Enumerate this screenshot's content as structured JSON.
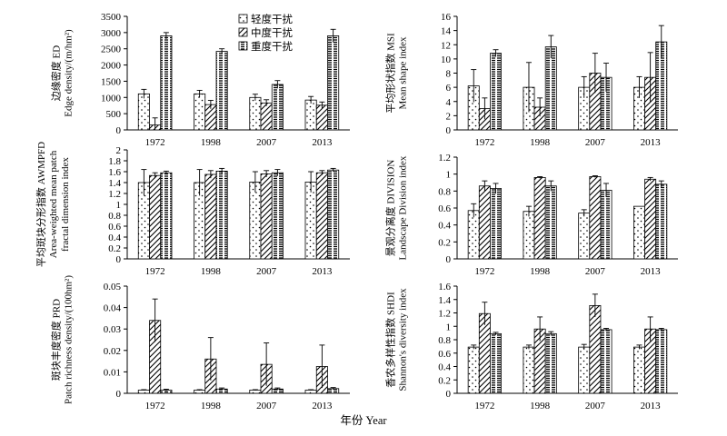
{
  "figure": {
    "x_title": "年份 Year"
  },
  "legend": [
    {
      "label": "轻度干扰",
      "pattern": "dots"
    },
    {
      "label": "中度干扰",
      "pattern": "hatch"
    },
    {
      "label": "重度干扰",
      "pattern": "dashes"
    }
  ],
  "chart_data": [
    {
      "type": "bar",
      "ylabel_lines": [
        "边缘密度 ED",
        "Edge density/(m/hm²)"
      ],
      "categories": [
        "1972",
        "1998",
        "2007",
        "2013"
      ],
      "ylim": [
        0,
        3500
      ],
      "yticks": [
        0,
        500,
        1000,
        1500,
        2000,
        2500,
        3000,
        3500
      ],
      "series": [
        {
          "name": "轻度干扰",
          "values": [
            1110,
            1110,
            1000,
            920
          ],
          "errors": [
            140,
            110,
            100,
            110
          ]
        },
        {
          "name": "中度干扰",
          "values": [
            150,
            780,
            830,
            760
          ],
          "errors": [
            220,
            130,
            100,
            100
          ]
        },
        {
          "name": "重度干扰",
          "values": [
            2900,
            2420,
            1400,
            2900
          ],
          "errors": [
            100,
            80,
            120,
            200
          ]
        }
      ]
    },
    {
      "type": "bar",
      "ylabel_lines": [
        "平均形状指数 MSI",
        "Mean shape index"
      ],
      "categories": [
        "1972",
        "1998",
        "2007",
        "2013"
      ],
      "ylim": [
        0,
        16
      ],
      "yticks": [
        0,
        2,
        4,
        6,
        8,
        10,
        12,
        14,
        16
      ],
      "series": [
        {
          "name": "轻度干扰",
          "values": [
            6.2,
            6.0,
            6.0,
            6.0
          ],
          "errors": [
            2.3,
            3.5,
            1.5,
            1.5
          ]
        },
        {
          "name": "中度干扰",
          "values": [
            3.0,
            3.2,
            8.0,
            7.4
          ],
          "errors": [
            1.5,
            1.3,
            2.8,
            3.5
          ]
        },
        {
          "name": "重度干扰",
          "values": [
            10.8,
            11.7,
            7.4,
            12.4
          ],
          "errors": [
            0.5,
            1.6,
            2.0,
            2.3
          ]
        }
      ]
    },
    {
      "type": "bar",
      "ylabel_lines": [
        "平均斑块分形指数 AWMPFD",
        "Area-weighted mean patch",
        "fractal dimension index"
      ],
      "categories": [
        "1972",
        "1998",
        "2007",
        "2013"
      ],
      "ylim": [
        0,
        2.0
      ],
      "yticks": [
        0,
        0.2,
        0.4,
        0.6,
        0.8,
        1.0,
        1.2,
        1.4,
        1.6,
        1.8,
        2.0
      ],
      "series": [
        {
          "name": "轻度干扰",
          "values": [
            1.4,
            1.4,
            1.41,
            1.41
          ],
          "errors": [
            0.24,
            0.24,
            0.19,
            0.19
          ]
        },
        {
          "name": "中度干扰",
          "values": [
            1.53,
            1.55,
            1.56,
            1.58
          ],
          "errors": [
            0.05,
            0.07,
            0.06,
            0.04
          ]
        },
        {
          "name": "重度干扰",
          "values": [
            1.58,
            1.61,
            1.58,
            1.63
          ],
          "errors": [
            0.03,
            0.05,
            0.06,
            0.03
          ]
        }
      ]
    },
    {
      "type": "bar",
      "ylabel_lines": [
        "景观分离度 DIVISION",
        "Landscape Division index"
      ],
      "categories": [
        "1972",
        "1998",
        "2007",
        "2013"
      ],
      "ylim": [
        0,
        1.2
      ],
      "yticks": [
        0,
        0.2,
        0.4,
        0.6,
        0.8,
        1.0,
        1.2
      ],
      "series": [
        {
          "name": "轻度干扰",
          "values": [
            0.57,
            0.56,
            0.54,
            0.62
          ],
          "errors": [
            0.08,
            0.06,
            0.04,
            0.0
          ]
        },
        {
          "name": "中度干扰",
          "values": [
            0.86,
            0.96,
            0.97,
            0.94
          ],
          "errors": [
            0.06,
            0.01,
            0.01,
            0.02
          ]
        },
        {
          "name": "重度干扰",
          "values": [
            0.83,
            0.86,
            0.81,
            0.88
          ],
          "errors": [
            0.06,
            0.06,
            0.08,
            0.04
          ]
        }
      ]
    },
    {
      "type": "bar",
      "ylabel_lines": [
        "斑块丰度密度 PRD",
        "Patch richness density/(100hm²)"
      ],
      "categories": [
        "1972",
        "1998",
        "2007",
        "2013"
      ],
      "ylim": [
        0,
        0.05
      ],
      "yticks": [
        0,
        0.01,
        0.02,
        0.03,
        0.04,
        0.05
      ],
      "tick_labels": [
        "0",
        "0.01",
        "0.02",
        "0.03",
        "0.04",
        "0.05"
      ],
      "series": [
        {
          "name": "轻度干扰",
          "values": [
            0.0015,
            0.0015,
            0.0015,
            0.0015
          ],
          "errors": [
            0.0002,
            0.0002,
            0.0002,
            0.0002
          ]
        },
        {
          "name": "中度干扰",
          "values": [
            0.034,
            0.016,
            0.0135,
            0.0125
          ],
          "errors": [
            0.01,
            0.01,
            0.01,
            0.01
          ]
        },
        {
          "name": "重度干扰",
          "values": [
            0.0015,
            0.002,
            0.002,
            0.0022
          ],
          "errors": [
            0.0004,
            0.0005,
            0.0005,
            0.0005
          ]
        }
      ]
    },
    {
      "type": "bar",
      "ylabel_lines": [
        "香农多样性指数 SHDI",
        "Shannon's diversity index"
      ],
      "categories": [
        "1972",
        "1998",
        "2007",
        "2013"
      ],
      "ylim": [
        0,
        1.6
      ],
      "yticks": [
        0,
        0.2,
        0.4,
        0.6,
        0.8,
        1.0,
        1.2,
        1.4,
        1.6
      ],
      "series": [
        {
          "name": "轻度干扰",
          "values": [
            0.69,
            0.69,
            0.69,
            0.69
          ],
          "errors": [
            0.03,
            0.03,
            0.04,
            0.03
          ]
        },
        {
          "name": "中度干扰",
          "values": [
            1.19,
            0.96,
            1.31,
            0.96
          ],
          "errors": [
            0.17,
            0.18,
            0.17,
            0.18
          ]
        },
        {
          "name": "重度干扰",
          "values": [
            0.89,
            0.89,
            0.95,
            0.95
          ],
          "errors": [
            0.02,
            0.03,
            0.02,
            0.02
          ]
        }
      ]
    }
  ]
}
